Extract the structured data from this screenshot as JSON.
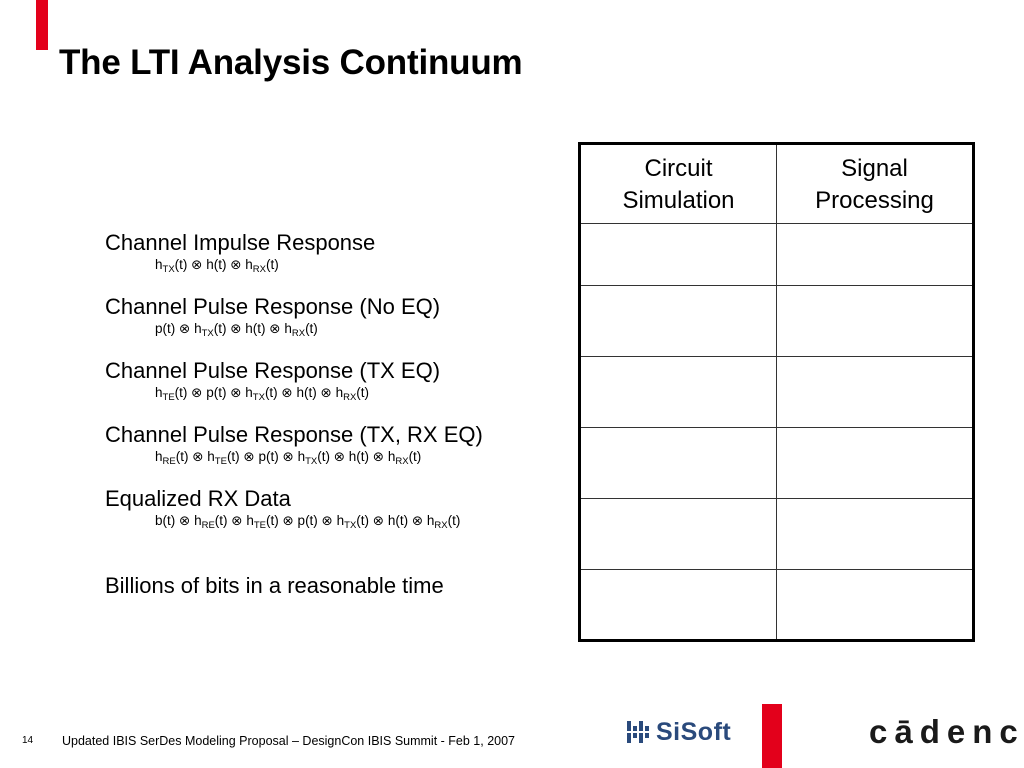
{
  "slide": {
    "title": "The LTI Analysis Continuum",
    "page_number": "14",
    "footer": "Updated IBIS SerDes Modeling Proposal – DesignCon IBIS Summit - Feb 1, 2007"
  },
  "colors": {
    "accent": "#e3001b",
    "sisoft_blue": "#2a4a7c"
  },
  "items": [
    {
      "label": "Channel Impulse Response",
      "formula": [
        [
          "h",
          "TX",
          "(t) ⊗ h(t) ⊗ "
        ],
        [
          "h",
          "RX",
          "(t)"
        ]
      ]
    },
    {
      "label": "Channel Pulse Response (No EQ)",
      "formula": [
        [
          "p(t) ⊗ h",
          "TX",
          "(t) ⊗ h(t) ⊗ "
        ],
        [
          "h",
          "RX",
          "(t)"
        ]
      ]
    },
    {
      "label": "Channel Pulse Response (TX EQ)",
      "formula": [
        [
          "h",
          "TE",
          "(t) ⊗ p(t) ⊗ "
        ],
        [
          "h",
          "TX",
          "(t) ⊗ h(t) ⊗ "
        ],
        [
          "h",
          "RX",
          "(t)"
        ]
      ]
    },
    {
      "label": "Channel Pulse Response (TX, RX EQ)",
      "formula": [
        [
          "h",
          "RE",
          "(t) ⊗ "
        ],
        [
          "h",
          "TE",
          "(t) ⊗ p(t) ⊗ "
        ],
        [
          "h",
          "TX",
          "(t) ⊗ h(t) ⊗ "
        ],
        [
          "h",
          "RX",
          "(t)"
        ]
      ]
    },
    {
      "label": "Equalized RX Data",
      "formula": [
        [
          "b(t) ⊗ h",
          "RE",
          "(t) ⊗ "
        ],
        [
          "h",
          "TE",
          "(t) ⊗ p(t) ⊗ "
        ],
        [
          "h",
          "TX",
          "(t) ⊗ h(t) ⊗ "
        ],
        [
          "h",
          "RX",
          "(t)"
        ]
      ]
    },
    {
      "label": "Billions of bits in a reasonable time",
      "formula": []
    }
  ],
  "table": {
    "headers": [
      {
        "line1": "Circuit",
        "line2": "Simulation"
      },
      {
        "line1": "Signal",
        "line2": "Processing"
      }
    ],
    "rows": [
      [
        "",
        ""
      ],
      [
        "",
        ""
      ],
      [
        "",
        ""
      ],
      [
        "",
        ""
      ],
      [
        "",
        ""
      ],
      [
        "",
        ""
      ]
    ]
  },
  "logos": {
    "sisoft": "SiSoft",
    "cadence": "cādence",
    "cadence_tm": "™"
  }
}
